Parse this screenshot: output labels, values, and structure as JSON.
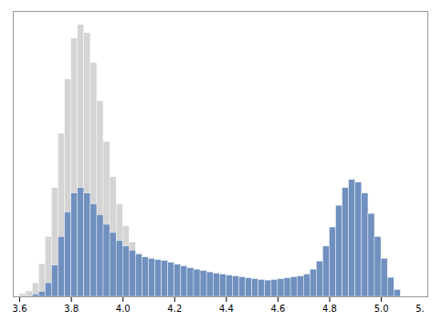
{
  "chart_data": {
    "type": "histogram",
    "xlim": [
      3.575,
      5.18
    ],
    "ylim": [
      0,
      1.05
    ],
    "xticks": [
      3.6,
      3.8,
      4,
      4.2,
      4.4,
      4.6,
      4.8,
      5
    ],
    "tick_labels": "x",
    "annotations": [
      {
        "text": "5.",
        "x": 5.15
      }
    ],
    "series": [
      {
        "color": "#d4d4d4",
        "bins": [
          3.6,
          3.625,
          3.65,
          3.675,
          3.7,
          3.725,
          3.75,
          3.775,
          3.8,
          3.825,
          3.85,
          3.875,
          3.9,
          3.925,
          3.95,
          3.975,
          4,
          4.025,
          4.05,
          4.075,
          4.1,
          4.125,
          4.15,
          4.175,
          4.2,
          4.225,
          4.25,
          4.275,
          4.3,
          4.325,
          4.35,
          4.375,
          4.4,
          4.425,
          4.45,
          4.475,
          4.5,
          4.525,
          4.55,
          4.575
        ],
        "values": [
          0.01,
          0.02,
          0.05,
          0.12,
          0.22,
          0.4,
          0.6,
          0.8,
          0.95,
          1.0,
          0.97,
          0.86,
          0.72,
          0.57,
          0.44,
          0.34,
          0.26,
          0.2,
          0.16,
          0.13,
          0.11,
          0.09,
          0.08,
          0.07,
          0.065,
          0.06,
          0.057,
          0.055,
          0.052,
          0.05,
          0.048,
          0.046,
          0.044,
          0.042,
          0.04,
          0.038,
          0.035,
          0.03,
          0.025
        ]
      },
      {
        "color": "#7090bf",
        "bins": [
          3.65,
          3.675,
          3.7,
          3.725,
          3.75,
          3.775,
          3.8,
          3.825,
          3.85,
          3.875,
          3.9,
          3.925,
          3.95,
          3.975,
          4,
          4.025,
          4.05,
          4.075,
          4.1,
          4.125,
          4.15,
          4.175,
          4.2,
          4.225,
          4.25,
          4.275,
          4.3,
          4.325,
          4.35,
          4.375,
          4.4,
          4.425,
          4.45,
          4.475,
          4.5,
          4.525,
          4.55,
          4.575,
          4.6,
          4.625,
          4.65,
          4.675,
          4.7,
          4.725,
          4.75,
          4.775,
          4.8,
          4.825,
          4.85,
          4.875,
          4.9,
          4.925,
          4.95,
          4.975,
          5,
          5.025,
          5.05,
          5.075
        ],
        "values": [
          0.008,
          0.018,
          0.05,
          0.115,
          0.22,
          0.31,
          0.38,
          0.4,
          0.38,
          0.34,
          0.3,
          0.265,
          0.235,
          0.205,
          0.185,
          0.17,
          0.155,
          0.145,
          0.14,
          0.135,
          0.132,
          0.125,
          0.118,
          0.112,
          0.105,
          0.1,
          0.095,
          0.09,
          0.085,
          0.082,
          0.078,
          0.075,
          0.072,
          0.068,
          0.065,
          0.062,
          0.06,
          0.062,
          0.065,
          0.068,
          0.072,
          0.075,
          0.082,
          0.1,
          0.13,
          0.185,
          0.255,
          0.335,
          0.4,
          0.43,
          0.42,
          0.38,
          0.305,
          0.22,
          0.14,
          0.07,
          0.025
        ]
      }
    ]
  }
}
